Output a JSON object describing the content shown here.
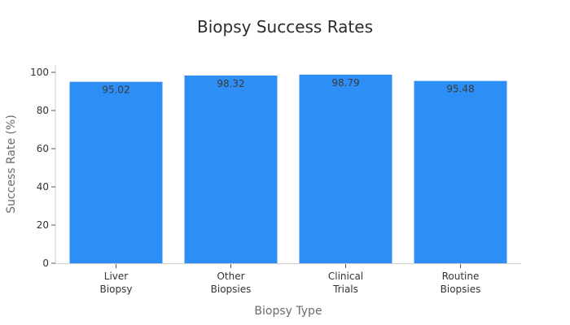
{
  "chart_data": {
    "type": "bar",
    "title": "Biopsy Success Rates",
    "xlabel": "Biopsy Type",
    "ylabel": "Success Rate (%)",
    "categories": [
      [
        "Liver",
        "Biopsy"
      ],
      [
        "Other",
        "Biopsies"
      ],
      [
        "Clinical",
        "Trials"
      ],
      [
        "Routine",
        "Biopsies"
      ]
    ],
    "values": [
      95.02,
      98.32,
      98.79,
      95.48
    ],
    "value_labels": [
      "95.02",
      "98.32",
      "98.79",
      "95.48"
    ],
    "ylim": [
      0,
      100
    ],
    "yticks": [
      0,
      20,
      40,
      60,
      80,
      100
    ],
    "grid": false,
    "colors": {
      "bar": "#2d8ff6",
      "axis": "#cccccc",
      "tick": "#333333"
    }
  }
}
